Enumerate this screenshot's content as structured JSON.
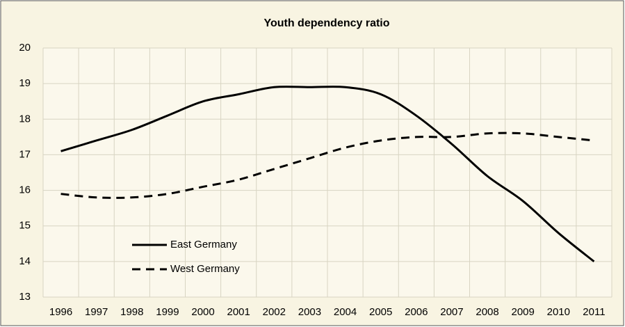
{
  "chart_data": {
    "type": "line",
    "title": "Youth dependency ratio",
    "categories": [
      "1996",
      "1997",
      "1998",
      "1999",
      "2000",
      "2001",
      "2002",
      "2003",
      "2004",
      "2005",
      "2006",
      "2007",
      "2008",
      "2009",
      "2010",
      "2011"
    ],
    "series": [
      {
        "name": "East Germany",
        "color": "#000000",
        "dash": "solid",
        "values": [
          17.1,
          17.4,
          17.7,
          18.1,
          18.5,
          18.7,
          18.9,
          18.9,
          18.9,
          18.7,
          18.1,
          17.3,
          16.4,
          15.7,
          14.8,
          14.0
        ]
      },
      {
        "name": "West Germany",
        "color": "#000000",
        "dash": "dashed",
        "values": [
          15.9,
          15.8,
          15.8,
          15.9,
          16.1,
          16.3,
          16.6,
          16.9,
          17.2,
          17.4,
          17.5,
          17.5,
          17.6,
          17.6,
          17.5,
          17.4
        ]
      }
    ],
    "ylim": [
      13,
      20
    ],
    "yticks": [
      13,
      14,
      15,
      16,
      17,
      18,
      19,
      20
    ],
    "grid": true,
    "legend": "lower left"
  }
}
